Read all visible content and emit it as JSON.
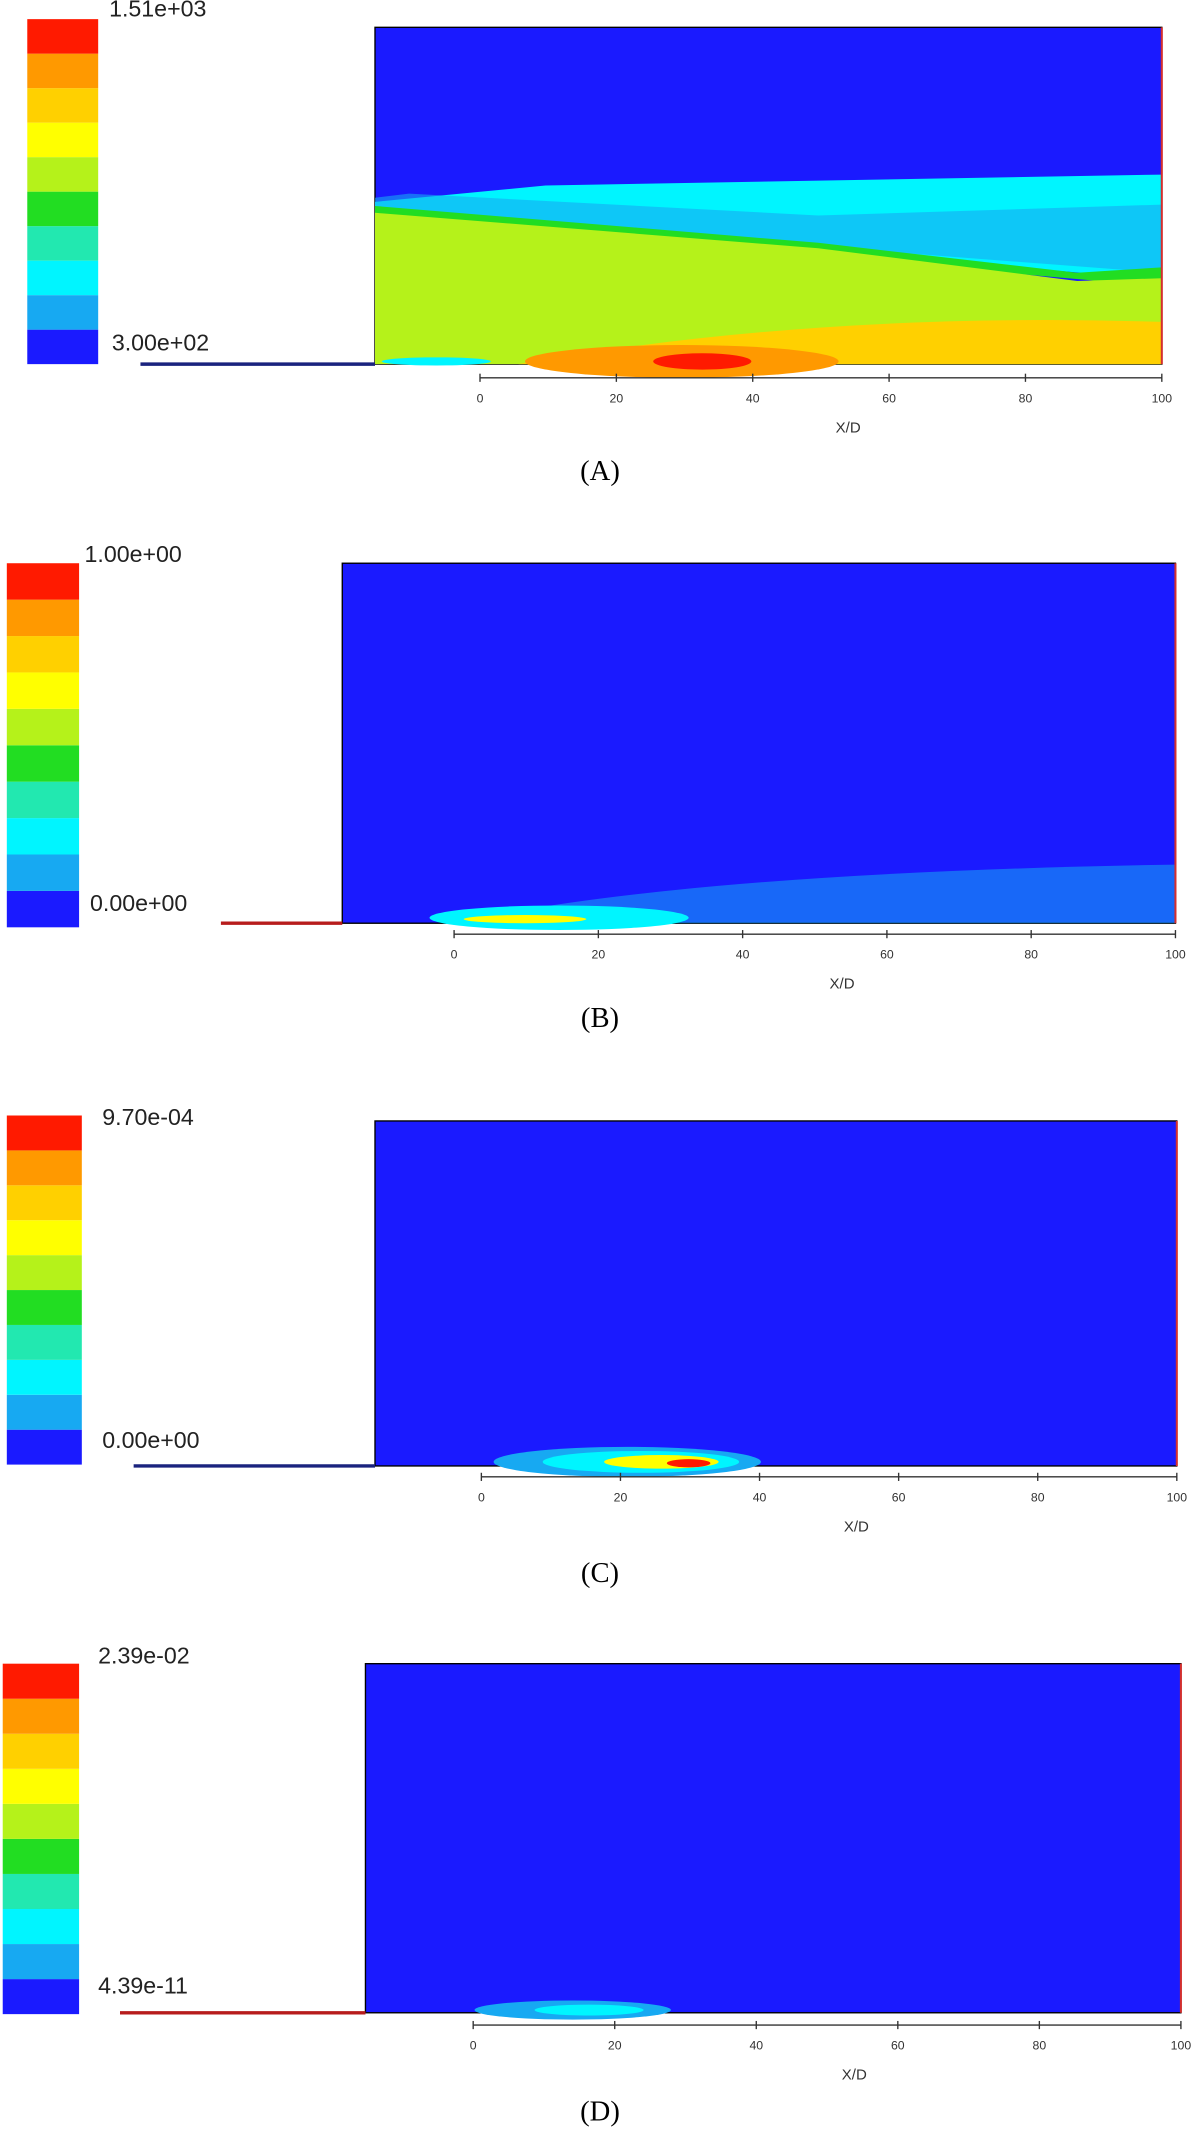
{
  "chart_data": [
    {
      "type": "contour",
      "caption": "(A)",
      "xlabel": "X/D",
      "xlim": [
        0,
        100
      ],
      "xticks": [
        0,
        20,
        40,
        60,
        80,
        100
      ],
      "colorbar_ticks": [
        {
          "value": 300,
          "label": "3.00e+02"
        },
        {
          "value": 1510,
          "label": "1.51e+03"
        }
      ],
      "colormap": [
        "#1a1aff",
        "#17a9f2",
        "#00f5ff",
        "#22e8b0",
        "#22dd22",
        "#b5f21a",
        "#ffff00",
        "#ffd000",
        "#ff9900",
        "#ff1a00"
      ]
    },
    {
      "type": "contour",
      "caption": "(B)",
      "xlabel": "X/D",
      "xlim": [
        0,
        100
      ],
      "xticks": [
        0,
        20,
        40,
        60,
        80,
        100
      ],
      "colorbar_ticks": [
        {
          "value": 0,
          "label": "0.00e+00"
        },
        {
          "value": 1,
          "label": "1.00e+00"
        }
      ],
      "colormap": [
        "#1a1aff",
        "#17a9f2",
        "#00f5ff",
        "#22e8b0",
        "#22dd22",
        "#b5f21a",
        "#ffff00",
        "#ffd000",
        "#ff9900",
        "#ff1a00"
      ]
    },
    {
      "type": "contour",
      "caption": "(C)",
      "xlabel": "X/D",
      "xlim": [
        0,
        100
      ],
      "xticks": [
        0,
        20,
        40,
        60,
        80,
        100
      ],
      "colorbar_ticks": [
        {
          "value": 0,
          "label": "0.00e+00"
        },
        {
          "value": 0.00097,
          "label": "9.70e-04"
        }
      ],
      "colormap": [
        "#1a1aff",
        "#17a9f2",
        "#00f5ff",
        "#22e8b0",
        "#22dd22",
        "#b5f21a",
        "#ffff00",
        "#ffd000",
        "#ff9900",
        "#ff1a00"
      ]
    },
    {
      "type": "contour",
      "caption": "(D)",
      "xlabel": "X/D",
      "xlim": [
        0,
        100
      ],
      "xticks": [
        0,
        20,
        40,
        60,
        80,
        100
      ],
      "colorbar_ticks": [
        4.39e-11,
        {
          "value": 0.0239,
          "label": "2.39e-02"
        }
      ],
      "colormap": [
        "#1a1aff",
        "#17a9f2",
        "#00f5ff",
        "#22e8b0",
        "#22dd22",
        "#b5f21a",
        "#ffff00",
        "#ffd000",
        "#ff9900",
        "#ff1a00"
      ]
    }
  ]
}
